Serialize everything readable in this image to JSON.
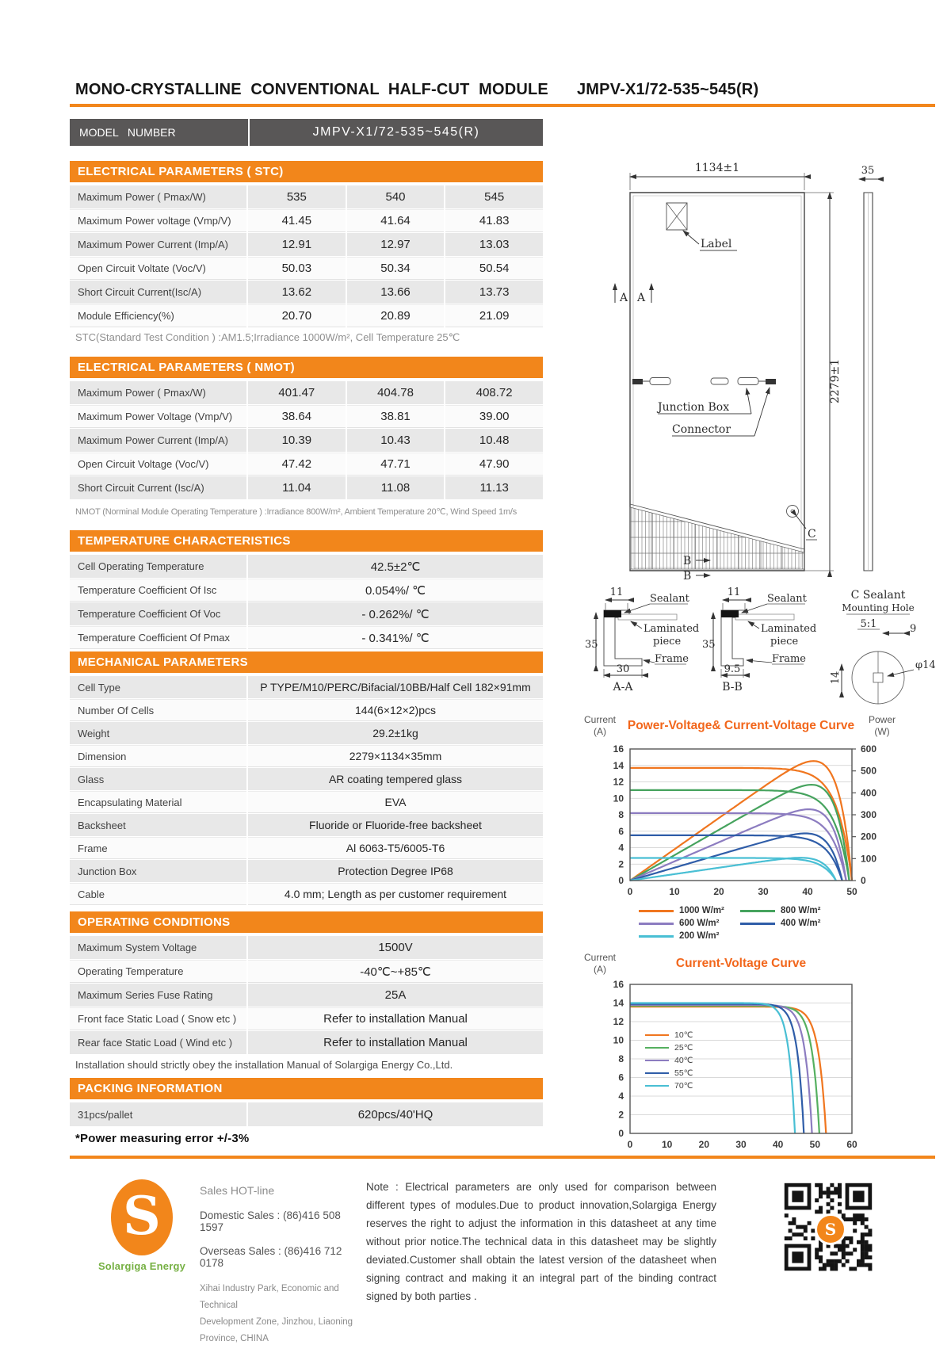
{
  "page": {
    "title_left": "MONO-CRYSTALLINE  CONVENTIONAL  HALF-CUT  MODULE",
    "title_right": "JMPV-X1/72-535~545(R)",
    "accent_color": "#F2861B",
    "power_error_note": "*Power measuring error  +/-3%"
  },
  "model": {
    "label": "MODEL   NUMBER",
    "value": "JMPV-X1/72-535~545(R)"
  },
  "sections": {
    "stc": {
      "header": "ELECTRICAL PARAMETERS ( STC)",
      "rows": [
        {
          "label": "Maximum Power ( Pmax/W)",
          "values": [
            "535",
            "540",
            "545"
          ]
        },
        {
          "label": "Maximum Power voltage (Vmp/V)",
          "values": [
            "41.45",
            "41.64",
            "41.83"
          ]
        },
        {
          "label": "Maximum Power Current (Imp/A)",
          "values": [
            "12.91",
            "12.97",
            "13.03"
          ]
        },
        {
          "label": "Open Circuit Voltate (Voc/V)",
          "values": [
            "50.03",
            "50.34",
            "50.54"
          ]
        },
        {
          "label": "Short Circuit Current(Isc/A)",
          "values": [
            "13.62",
            "13.66",
            "13.73"
          ]
        },
        {
          "label": "Module Efficiency(%)",
          "values": [
            "20.70",
            "20.89",
            "21.09"
          ]
        }
      ],
      "footnote": "STC(Standard Test Condition  ) :AM1.5;Irradiance 1000W/m²,  Cell Temperature 25℃"
    },
    "nmot": {
      "header": "ELECTRICAL PARAMETERS ( NMOT)",
      "rows": [
        {
          "label": "Maximum Power ( Pmax/W)",
          "values": [
            "401.47",
            "404.78",
            "408.72"
          ]
        },
        {
          "label": "Maximum Power Voltage (Vmp/V)",
          "values": [
            "38.64",
            "38.81",
            "39.00"
          ]
        },
        {
          "label": "Maximum Power Current (Imp/A)",
          "values": [
            "10.39",
            "10.43",
            "10.48"
          ]
        },
        {
          "label": "Open Circuit Voltage (Voc/V)",
          "values": [
            "47.42",
            "47.71",
            "47.90"
          ]
        },
        {
          "label": "Short Circuit Current (Isc/A)",
          "values": [
            "11.04",
            "11.08",
            "11.13"
          ]
        }
      ],
      "footnote": "NMOT   (Norminal Module Operating Temperature ) :Irradiance 800W/m²,   Ambient Temperature  20℃,   Wind Speed 1m/s"
    },
    "temperature": {
      "header": "TEMPERATURE CHARACTERISTICS",
      "rows": [
        {
          "label": "Cell Operating Temperature",
          "values": [
            "42.5±2℃"
          ]
        },
        {
          "label": "Temperature Coefficient Of Isc",
          "values": [
            "0.054%/ ℃"
          ]
        },
        {
          "label": "Temperature Coefficient Of Voc",
          "values": [
            "- 0.262%/ ℃"
          ]
        },
        {
          "label": "Temperature Coefficient Of Pmax",
          "values": [
            "- 0.341%/ ℃"
          ]
        }
      ]
    },
    "mechanical": {
      "header": "MECHANICAL PARAMETERS",
      "rows": [
        {
          "label": "Cell Type",
          "values": [
            "P TYPE/M10/PERC/Bifacial/10BB/Half Cell 182×91mm"
          ]
        },
        {
          "label": "Number Of Cells",
          "values": [
            "144(6×12×2)pcs"
          ]
        },
        {
          "label": "Weight",
          "values": [
            "29.2±1kg"
          ]
        },
        {
          "label": "Dimension",
          "values": [
            "2279×1134×35mm"
          ]
        },
        {
          "label": "Glass",
          "values": [
            "AR coating tempered glass"
          ]
        },
        {
          "label": "Encapsulating Material",
          "values": [
            "EVA"
          ]
        },
        {
          "label": "Backsheet",
          "values": [
            "Fluoride or Fluoride-free backsheet"
          ]
        },
        {
          "label": "Frame",
          "values": [
            "Al 6063-T5/6005-T6"
          ]
        },
        {
          "label": "Junction Box",
          "values": [
            "Protection Degree IP68"
          ]
        },
        {
          "label": "Cable",
          "values": [
            "4.0 mm;  Length as per customer requirement"
          ]
        }
      ]
    },
    "operating": {
      "header": "OPERATING CONDITIONS",
      "rows": [
        {
          "label": "Maximum System Voltage",
          "values": [
            "1500V"
          ]
        },
        {
          "label": "Operating Temperature",
          "values": [
            "-40℃~+85℃"
          ]
        },
        {
          "label": "Maximum Series Fuse Rating",
          "values": [
            "25A"
          ]
        },
        {
          "label": "Front face Static Load ( Snow etc )",
          "values": [
            "Refer to installation  Manual"
          ]
        },
        {
          "label": "Rear face Static Load ( Wind etc )",
          "values": [
            "Refer to installation  Manual"
          ]
        }
      ],
      "footnote": "Installation should strictly obey the installation Manual of Solargiga  Energy Co.,Ltd."
    },
    "packing": {
      "header": "PACKING INFORMATION",
      "rows": [
        {
          "label": "31pcs/pallet",
          "values": [
            "620pcs/40'HQ"
          ]
        }
      ]
    }
  },
  "drawing": {
    "dim_width": "1134±1",
    "dim_height": "2279±1",
    "dim_thickness": "35",
    "label": "Label",
    "junction_box": "Junction Box",
    "connector": "Connector",
    "section_a": "A",
    "section_b": "B",
    "section_c": "C",
    "sealant": "Sealant",
    "laminated_1": "Laminated",
    "laminated_2": "piece",
    "frame": "Frame",
    "dim_11": "11",
    "dim_35": "35",
    "dim_30": "30",
    "dim_95": "9.5",
    "caption_aa": "A-A",
    "caption_bb": "B-B",
    "c_title_1": "C Sealant",
    "c_title_2": "Mounting Hole",
    "c_scale": "5:1",
    "dim_9": "9",
    "dim_phi": "φ14",
    "dim_14": "14"
  },
  "chart_data": [
    {
      "type": "line",
      "title": "Power-Voltage& Current-Voltage Curve",
      "ylabel_left": [
        "Current",
        "(A)"
      ],
      "ylabel_right": [
        "Power",
        "(W)"
      ],
      "xlabel": "",
      "x_range": [
        0,
        50
      ],
      "x_ticks": [
        0,
        10,
        20,
        30,
        40,
        50
      ],
      "y_left_range": [
        0,
        16
      ],
      "y_left_ticks": [
        0,
        2,
        4,
        6,
        8,
        10,
        12,
        14,
        16
      ],
      "y_right_range": [
        0,
        600
      ],
      "y_right_ticks": [
        0,
        100,
        200,
        300,
        400,
        500,
        600
      ],
      "dual": true,
      "knee": 15,
      "grid": true,
      "legend_position": "below",
      "series": [
        {
          "name": "1000 W/m²",
          "color": "#F0761F",
          "isc": 13.7,
          "voc": 50.0,
          "pmax": 545
        },
        {
          "name": "800 W/m²",
          "color": "#46A35E",
          "isc": 11.0,
          "voc": 49.4,
          "pmax": 437
        },
        {
          "name": "600 W/m²",
          "color": "#8C7CC0",
          "isc": 8.2,
          "voc": 48.7,
          "pmax": 325
        },
        {
          "name": "400 W/m²",
          "color": "#2F5DA8",
          "isc": 5.5,
          "voc": 47.8,
          "pmax": 215
        },
        {
          "name": "200 W/m²",
          "color": "#49BFD4",
          "isc": 2.75,
          "voc": 46.4,
          "pmax": 104
        }
      ]
    },
    {
      "type": "line",
      "title": "Current-Voltage Curve",
      "ylabel_left": [
        "Current",
        "(A)"
      ],
      "xlabel": "",
      "x_range": [
        0,
        60
      ],
      "x_ticks": [
        0,
        10,
        20,
        30,
        40,
        50,
        60
      ],
      "y_left_range": [
        0,
        16
      ],
      "y_left_ticks": [
        0,
        2,
        4,
        6,
        8,
        10,
        12,
        14,
        16
      ],
      "dual": false,
      "knee": 26,
      "grid": true,
      "legend_position": "inside-left",
      "series": [
        {
          "name": "10℃",
          "color": "#F0761F",
          "isc": 13.6,
          "voc": 53.0
        },
        {
          "name": "25℃",
          "color": "#55B060",
          "isc": 13.7,
          "voc": 51.2
        },
        {
          "name": "40℃",
          "color": "#8C7CC0",
          "isc": 13.8,
          "voc": 49.2
        },
        {
          "name": "55℃",
          "color": "#2F5DA8",
          "isc": 13.9,
          "voc": 47.0
        },
        {
          "name": "70℃",
          "color": "#49BFD4",
          "isc": 14.0,
          "voc": 44.6
        }
      ]
    }
  ],
  "footer": {
    "sales_hotline": "Sales HOT-line",
    "domestic": "Domestic Sales : (86)416 508 1597",
    "overseas": "Overseas Sales : (86)416 712 0178",
    "address_1": "Xihai Industry Park, Economic and Technical",
    "address_2": "Development  Zone, Jinzhou, Liaoning",
    "address_3": "Province, CHINA",
    "note": "Note :  Electrical  parameters  are  only  used  for  comparison  between different  types  of  modules.Due  to  product  innovation,Solargiga  Energy reserves  the  right  to  adjust  the  information  in  this  datasheet  at  any  time without  prior  notice.The  technical  data  in  this  datasheet  may  be  slightly deviated.Customer  shall  obtain  the  latest  version  of  the  datasheet  when signing  contract  and  making  it  an  integral  part  of  the  binding  contract signed  by  both  parties .",
    "logo_letter": "S",
    "logo_text": "Solargiga Energy"
  }
}
